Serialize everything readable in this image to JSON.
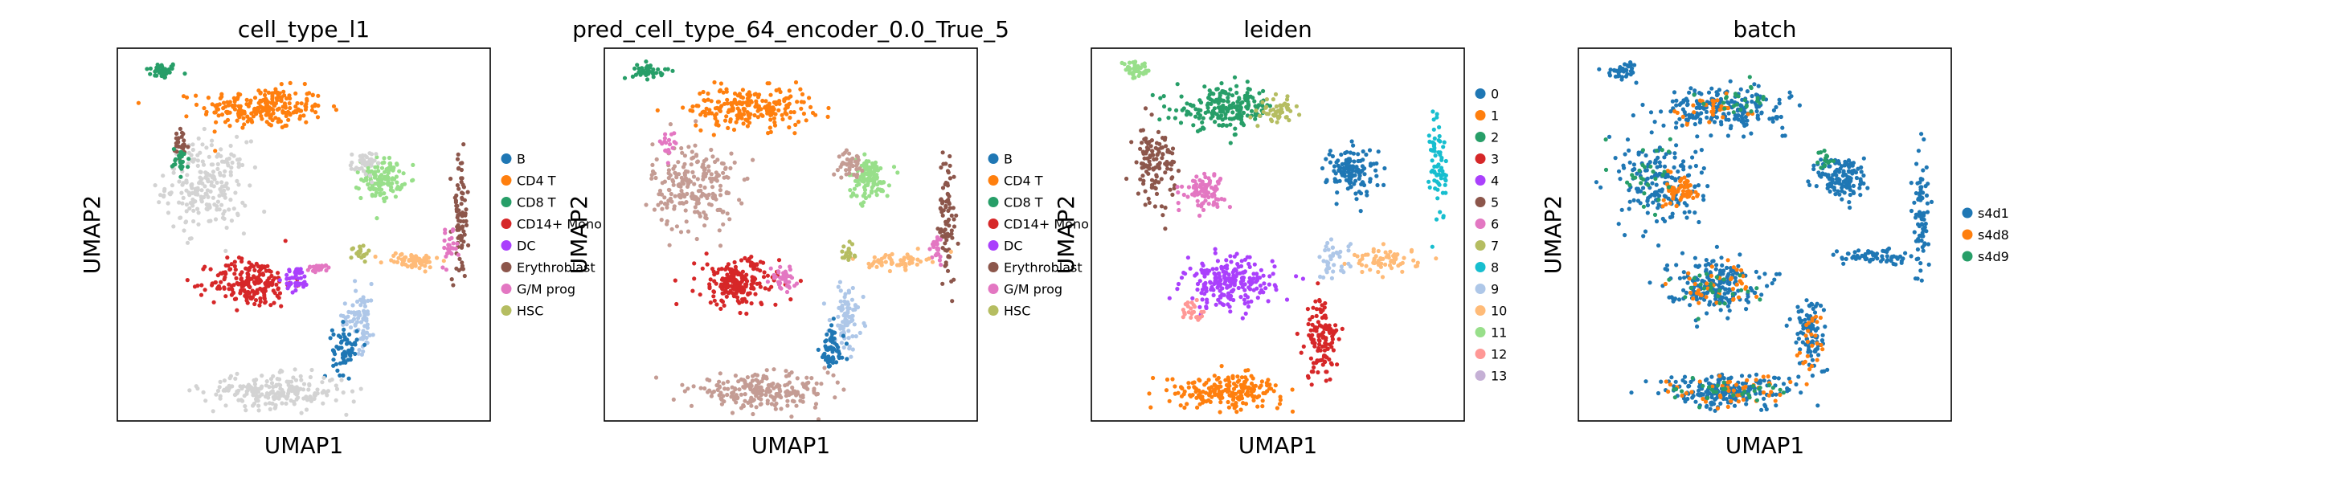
{
  "chart_data": [
    {
      "type": "scatter",
      "title": "cell_type_l1",
      "xlabel": "UMAP1",
      "ylabel": "UMAP2",
      "legend_placement": "right",
      "legend": [
        {
          "label": "B",
          "color": "#1f77b4"
        },
        {
          "label": "CD4 T",
          "color": "#ff7f0e"
        },
        {
          "label": "CD8 T",
          "color": "#279e68"
        },
        {
          "label": "CD14+ Mono",
          "color": "#d62728"
        },
        {
          "label": "DC",
          "color": "#aa40fc"
        },
        {
          "label": "Erythroblast",
          "color": "#8c564b"
        },
        {
          "label": "G/M prog",
          "color": "#e377c2"
        },
        {
          "label": "HSC",
          "color": "#b5bd61"
        }
      ],
      "clusters": [
        {
          "color": "#279e68",
          "x": 0.12,
          "y": 0.94,
          "rx": 0.04,
          "ry": 0.02,
          "n": 40
        },
        {
          "color": "#ff7f0e",
          "x": 0.39,
          "y": 0.84,
          "rx": 0.15,
          "ry": 0.05,
          "n": 220
        },
        {
          "color": "#d3d3d3",
          "x": 0.24,
          "y": 0.63,
          "rx": 0.1,
          "ry": 0.11,
          "n": 220
        },
        {
          "color": "#8c564b",
          "x": 0.17,
          "y": 0.74,
          "rx": 0.02,
          "ry": 0.04,
          "n": 25
        },
        {
          "color": "#279e68",
          "x": 0.17,
          "y": 0.7,
          "rx": 0.02,
          "ry": 0.03,
          "n": 25
        },
        {
          "color": "#98df8a",
          "x": 0.71,
          "y": 0.65,
          "rx": 0.05,
          "ry": 0.05,
          "n": 120
        },
        {
          "color": "#d3d3d3",
          "x": 0.66,
          "y": 0.69,
          "rx": 0.03,
          "ry": 0.03,
          "n": 40
        },
        {
          "color": "#8c564b",
          "x": 0.92,
          "y": 0.55,
          "rx": 0.02,
          "ry": 0.16,
          "n": 80
        },
        {
          "color": "#e377c2",
          "x": 0.89,
          "y": 0.46,
          "rx": 0.02,
          "ry": 0.04,
          "n": 25
        },
        {
          "color": "#ffbb78",
          "x": 0.79,
          "y": 0.43,
          "rx": 0.07,
          "ry": 0.02,
          "n": 60
        },
        {
          "color": "#b5bd61",
          "x": 0.65,
          "y": 0.45,
          "rx": 0.02,
          "ry": 0.02,
          "n": 20
        },
        {
          "color": "#d62728",
          "x": 0.36,
          "y": 0.37,
          "rx": 0.1,
          "ry": 0.06,
          "n": 200
        },
        {
          "color": "#aa40fc",
          "x": 0.48,
          "y": 0.38,
          "rx": 0.03,
          "ry": 0.03,
          "n": 45
        },
        {
          "color": "#e377c2",
          "x": 0.54,
          "y": 0.41,
          "rx": 0.03,
          "ry": 0.01,
          "n": 20
        },
        {
          "color": "#aec7e8",
          "x": 0.65,
          "y": 0.28,
          "rx": 0.04,
          "ry": 0.08,
          "n": 80
        },
        {
          "color": "#1f77b4",
          "x": 0.61,
          "y": 0.19,
          "rx": 0.03,
          "ry": 0.06,
          "n": 60
        },
        {
          "color": "#d3d3d3",
          "x": 0.42,
          "y": 0.08,
          "rx": 0.17,
          "ry": 0.04,
          "n": 220
        }
      ]
    },
    {
      "type": "scatter",
      "title": "pred_cell_type_64_encoder_0.0_True_5",
      "xlabel": "UMAP1",
      "ylabel": "UMAP2",
      "legend_placement": "right",
      "legend": [
        {
          "label": "B",
          "color": "#1f77b4"
        },
        {
          "label": "CD4 T",
          "color": "#ff7f0e"
        },
        {
          "label": "CD8 T",
          "color": "#279e68"
        },
        {
          "label": "CD14+ Mono",
          "color": "#d62728"
        },
        {
          "label": "DC",
          "color": "#aa40fc"
        },
        {
          "label": "Erythroblast",
          "color": "#8c564b"
        },
        {
          "label": "G/M prog",
          "color": "#e377c2"
        },
        {
          "label": "HSC",
          "color": "#b5bd61"
        }
      ],
      "clusters": [
        {
          "color": "#279e68",
          "x": 0.12,
          "y": 0.94,
          "rx": 0.04,
          "ry": 0.02,
          "n": 40
        },
        {
          "color": "#ff7f0e",
          "x": 0.39,
          "y": 0.84,
          "rx": 0.15,
          "ry": 0.05,
          "n": 220
        },
        {
          "color": "#c49c94",
          "x": 0.24,
          "y": 0.63,
          "rx": 0.1,
          "ry": 0.11,
          "n": 220
        },
        {
          "color": "#e377c2",
          "x": 0.17,
          "y": 0.74,
          "rx": 0.02,
          "ry": 0.03,
          "n": 20
        },
        {
          "color": "#98df8a",
          "x": 0.71,
          "y": 0.65,
          "rx": 0.05,
          "ry": 0.05,
          "n": 120
        },
        {
          "color": "#c49c94",
          "x": 0.66,
          "y": 0.69,
          "rx": 0.03,
          "ry": 0.03,
          "n": 40
        },
        {
          "color": "#8c564b",
          "x": 0.92,
          "y": 0.55,
          "rx": 0.02,
          "ry": 0.16,
          "n": 80
        },
        {
          "color": "#e377c2",
          "x": 0.89,
          "y": 0.46,
          "rx": 0.02,
          "ry": 0.04,
          "n": 25
        },
        {
          "color": "#ffbb78",
          "x": 0.79,
          "y": 0.43,
          "rx": 0.07,
          "ry": 0.02,
          "n": 60
        },
        {
          "color": "#b5bd61",
          "x": 0.65,
          "y": 0.45,
          "rx": 0.02,
          "ry": 0.02,
          "n": 20
        },
        {
          "color": "#d62728",
          "x": 0.36,
          "y": 0.37,
          "rx": 0.1,
          "ry": 0.06,
          "n": 200
        },
        {
          "color": "#e377c2",
          "x": 0.48,
          "y": 0.38,
          "rx": 0.03,
          "ry": 0.03,
          "n": 40
        },
        {
          "color": "#aec7e8",
          "x": 0.65,
          "y": 0.28,
          "rx": 0.04,
          "ry": 0.08,
          "n": 80
        },
        {
          "color": "#1f77b4",
          "x": 0.61,
          "y": 0.19,
          "rx": 0.03,
          "ry": 0.06,
          "n": 60
        },
        {
          "color": "#c49c94",
          "x": 0.42,
          "y": 0.08,
          "rx": 0.17,
          "ry": 0.04,
          "n": 220
        }
      ]
    },
    {
      "type": "scatter",
      "title": "leiden",
      "xlabel": "UMAP1",
      "ylabel": "UMAP2",
      "legend_placement": "right",
      "legend": [
        {
          "label": "0",
          "color": "#1f77b4"
        },
        {
          "label": "1",
          "color": "#ff7f0e"
        },
        {
          "label": "2",
          "color": "#279e68"
        },
        {
          "label": "3",
          "color": "#d62728"
        },
        {
          "label": "4",
          "color": "#aa40fc"
        },
        {
          "label": "5",
          "color": "#8c564b"
        },
        {
          "label": "6",
          "color": "#e377c2"
        },
        {
          "label": "7",
          "color": "#b5bd61"
        },
        {
          "label": "8",
          "color": "#17becf"
        },
        {
          "label": "9",
          "color": "#aec7e8"
        },
        {
          "label": "10",
          "color": "#ffbb78"
        },
        {
          "label": "11",
          "color": "#98df8a"
        },
        {
          "label": "12",
          "color": "#ff9896"
        },
        {
          "label": "13",
          "color": "#c5b0d5"
        }
      ],
      "clusters": [
        {
          "color": "#98df8a",
          "x": 0.12,
          "y": 0.94,
          "rx": 0.04,
          "ry": 0.02,
          "n": 40
        },
        {
          "color": "#279e68",
          "x": 0.36,
          "y": 0.84,
          "rx": 0.12,
          "ry": 0.05,
          "n": 200
        },
        {
          "color": "#b5bd61",
          "x": 0.5,
          "y": 0.83,
          "rx": 0.04,
          "ry": 0.03,
          "n": 50
        },
        {
          "color": "#8c564b",
          "x": 0.17,
          "y": 0.69,
          "rx": 0.05,
          "ry": 0.09,
          "n": 120
        },
        {
          "color": "#e377c2",
          "x": 0.3,
          "y": 0.62,
          "rx": 0.05,
          "ry": 0.04,
          "n": 90
        },
        {
          "color": "#1f77b4",
          "x": 0.7,
          "y": 0.67,
          "rx": 0.06,
          "ry": 0.06,
          "n": 130
        },
        {
          "color": "#17becf",
          "x": 0.93,
          "y": 0.68,
          "rx": 0.02,
          "ry": 0.14,
          "n": 70
        },
        {
          "color": "#ffbb78",
          "x": 0.79,
          "y": 0.43,
          "rx": 0.08,
          "ry": 0.03,
          "n": 70
        },
        {
          "color": "#aec7e8",
          "x": 0.65,
          "y": 0.43,
          "rx": 0.04,
          "ry": 0.05,
          "n": 40
        },
        {
          "color": "#aa40fc",
          "x": 0.37,
          "y": 0.37,
          "rx": 0.11,
          "ry": 0.06,
          "n": 220
        },
        {
          "color": "#ff9896",
          "x": 0.27,
          "y": 0.29,
          "rx": 0.03,
          "ry": 0.03,
          "n": 25
        },
        {
          "color": "#d62728",
          "x": 0.62,
          "y": 0.22,
          "rx": 0.04,
          "ry": 0.1,
          "n": 120
        },
        {
          "color": "#ff7f0e",
          "x": 0.36,
          "y": 0.08,
          "rx": 0.14,
          "ry": 0.04,
          "n": 200
        }
      ]
    },
    {
      "type": "scatter",
      "title": "batch",
      "xlabel": "UMAP1",
      "ylabel": "UMAP2",
      "legend_placement": "right",
      "legend": [
        {
          "label": "s4d1",
          "color": "#1f77b4"
        },
        {
          "label": "s4d8",
          "color": "#ff7f0e"
        },
        {
          "label": "s4d9",
          "color": "#279e68"
        }
      ],
      "clusters": [
        {
          "color": "#1f77b4",
          "x": 0.12,
          "y": 0.94,
          "rx": 0.04,
          "ry": 0.02,
          "n": 40
        },
        {
          "color": "#1f77b4",
          "x": 0.39,
          "y": 0.84,
          "rx": 0.15,
          "ry": 0.05,
          "n": 200
        },
        {
          "color": "#ff7f0e",
          "x": 0.35,
          "y": 0.84,
          "rx": 0.1,
          "ry": 0.04,
          "n": 30
        },
        {
          "color": "#279e68",
          "x": 0.42,
          "y": 0.85,
          "rx": 0.1,
          "ry": 0.04,
          "n": 25
        },
        {
          "color": "#1f77b4",
          "x": 0.22,
          "y": 0.64,
          "rx": 0.1,
          "ry": 0.11,
          "n": 180
        },
        {
          "color": "#ff7f0e",
          "x": 0.28,
          "y": 0.62,
          "rx": 0.04,
          "ry": 0.04,
          "n": 60
        },
        {
          "color": "#279e68",
          "x": 0.18,
          "y": 0.66,
          "rx": 0.06,
          "ry": 0.08,
          "n": 30
        },
        {
          "color": "#1f77b4",
          "x": 0.71,
          "y": 0.65,
          "rx": 0.06,
          "ry": 0.06,
          "n": 130
        },
        {
          "color": "#279e68",
          "x": 0.66,
          "y": 0.7,
          "rx": 0.02,
          "ry": 0.02,
          "n": 15
        },
        {
          "color": "#1f77b4",
          "x": 0.92,
          "y": 0.56,
          "rx": 0.02,
          "ry": 0.17,
          "n": 80
        },
        {
          "color": "#1f77b4",
          "x": 0.79,
          "y": 0.44,
          "rx": 0.08,
          "ry": 0.02,
          "n": 60
        },
        {
          "color": "#1f77b4",
          "x": 0.36,
          "y": 0.37,
          "rx": 0.11,
          "ry": 0.06,
          "n": 200
        },
        {
          "color": "#ff7f0e",
          "x": 0.36,
          "y": 0.37,
          "rx": 0.1,
          "ry": 0.05,
          "n": 40
        },
        {
          "color": "#279e68",
          "x": 0.36,
          "y": 0.36,
          "rx": 0.1,
          "ry": 0.05,
          "n": 25
        },
        {
          "color": "#1f77b4",
          "x": 0.62,
          "y": 0.23,
          "rx": 0.04,
          "ry": 0.1,
          "n": 100
        },
        {
          "color": "#ff7f0e",
          "x": 0.62,
          "y": 0.22,
          "rx": 0.03,
          "ry": 0.08,
          "n": 25
        },
        {
          "color": "#1f77b4",
          "x": 0.4,
          "y": 0.08,
          "rx": 0.16,
          "ry": 0.04,
          "n": 200
        },
        {
          "color": "#ff7f0e",
          "x": 0.4,
          "y": 0.08,
          "rx": 0.15,
          "ry": 0.04,
          "n": 50
        },
        {
          "color": "#279e68",
          "x": 0.4,
          "y": 0.08,
          "rx": 0.15,
          "ry": 0.04,
          "n": 30
        }
      ]
    }
  ]
}
